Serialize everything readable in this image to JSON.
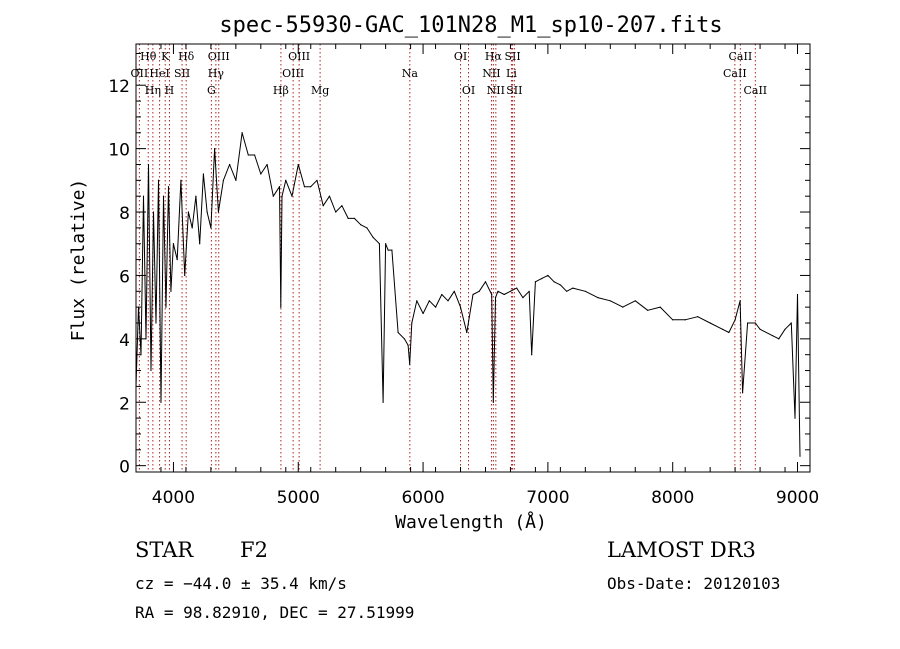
{
  "chart_data": {
    "type": "line",
    "title": "spec-55930-GAC_101N28_M1_sp10-207.fits",
    "xlabel": "Wavelength (Å)",
    "ylabel": "Flux (relative)",
    "xlim": [
      3700,
      9100
    ],
    "ylim": [
      -0.2,
      13.3
    ],
    "xticks": [
      4000,
      5000,
      6000,
      7000,
      8000,
      9000
    ],
    "yticks": [
      0,
      2,
      4,
      6,
      8,
      10,
      12
    ],
    "grid": false,
    "series": [
      {
        "name": "spectrum",
        "x": [
          3700,
          3720,
          3740,
          3760,
          3780,
          3800,
          3820,
          3840,
          3860,
          3880,
          3900,
          3920,
          3940,
          3960,
          3980,
          4000,
          4030,
          4060,
          4090,
          4120,
          4150,
          4180,
          4210,
          4240,
          4270,
          4300,
          4330,
          4360,
          4400,
          4450,
          4500,
          4550,
          4600,
          4650,
          4700,
          4750,
          4800,
          4850,
          4860,
          4870,
          4900,
          4950,
          5000,
          5050,
          5100,
          5150,
          5200,
          5250,
          5300,
          5350,
          5400,
          5450,
          5500,
          5550,
          5600,
          5650,
          5680,
          5700,
          5720,
          5750,
          5800,
          5850,
          5880,
          5893,
          5910,
          5950,
          6000,
          6050,
          6100,
          6150,
          6200,
          6250,
          6300,
          6350,
          6400,
          6450,
          6500,
          6550,
          6563,
          6580,
          6600,
          6650,
          6700,
          6750,
          6800,
          6850,
          6870,
          6900,
          6950,
          7000,
          7050,
          7100,
          7150,
          7200,
          7300,
          7400,
          7500,
          7600,
          7700,
          7800,
          7900,
          8000,
          8100,
          8200,
          8300,
          8400,
          8450,
          8500,
          8540,
          8560,
          8600,
          8662,
          8700,
          8800,
          8850,
          8900,
          8950,
          8980,
          9000,
          9020
        ],
        "y": [
          2.5,
          5.0,
          3.5,
          8.5,
          4.0,
          9.5,
          3.0,
          8.0,
          4.5,
          9.0,
          2.0,
          8.5,
          5.0,
          8.8,
          5.5,
          7.0,
          6.5,
          9.0,
          6.0,
          8.0,
          7.5,
          8.5,
          7.0,
          9.2,
          8.0,
          7.5,
          10.0,
          8.0,
          9.0,
          9.5,
          9.0,
          10.5,
          9.8,
          9.8,
          9.2,
          9.5,
          8.5,
          8.8,
          5.0,
          8.5,
          9.0,
          8.5,
          9.5,
          8.8,
          8.8,
          9.0,
          8.2,
          8.5,
          8.0,
          8.2,
          7.8,
          7.8,
          7.6,
          7.5,
          7.2,
          7.0,
          2.0,
          7.0,
          6.8,
          6.8,
          4.2,
          4.0,
          3.8,
          3.2,
          4.5,
          5.2,
          4.8,
          5.2,
          5.0,
          5.4,
          5.2,
          5.5,
          5.0,
          4.2,
          5.4,
          5.5,
          5.8,
          5.4,
          2.0,
          5.3,
          5.5,
          5.4,
          5.5,
          5.6,
          5.3,
          5.5,
          3.5,
          5.8,
          5.9,
          6.0,
          5.8,
          5.7,
          5.5,
          5.6,
          5.5,
          5.3,
          5.2,
          5.0,
          5.2,
          4.9,
          5.0,
          4.6,
          4.6,
          4.7,
          4.5,
          4.3,
          4.2,
          4.6,
          5.2,
          2.3,
          4.5,
          4.5,
          4.3,
          4.1,
          4.0,
          4.3,
          4.5,
          1.5,
          5.4,
          0.3
        ]
      }
    ],
    "lines": [
      {
        "name": "OII",
        "wavelength": 3727,
        "row": 2
      },
      {
        "name": "Hθ",
        "wavelength": 3798,
        "row": 1
      },
      {
        "name": "Hη",
        "wavelength": 3835,
        "row": 3
      },
      {
        "name": "HeI",
        "wavelength": 3889,
        "row": 2
      },
      {
        "name": "K",
        "wavelength": 3934,
        "row": 1
      },
      {
        "name": "H",
        "wavelength": 3968,
        "row": 3
      },
      {
        "name": "SII",
        "wavelength": 4069,
        "row": 2
      },
      {
        "name": "Hδ",
        "wavelength": 4102,
        "row": 1
      },
      {
        "name": "G",
        "wavelength": 4304,
        "row": 3
      },
      {
        "name": "Hγ",
        "wavelength": 4340,
        "row": 2
      },
      {
        "name": "OIII",
        "wavelength": 4363,
        "row": 1
      },
      {
        "name": "Hβ",
        "wavelength": 4861,
        "row": 3
      },
      {
        "name": "OIII",
        "wavelength": 4959,
        "row": 2
      },
      {
        "name": "OIII",
        "wavelength": 5007,
        "row": 1
      },
      {
        "name": "Mg",
        "wavelength": 5175,
        "row": 3
      },
      {
        "name": "Na",
        "wavelength": 5894,
        "row": 2
      },
      {
        "name": "OI",
        "wavelength": 6300,
        "row": 1
      },
      {
        "name": "OI",
        "wavelength": 6364,
        "row": 3
      },
      {
        "name": "NII",
        "wavelength": 6548,
        "row": 2
      },
      {
        "name": "Hα",
        "wavelength": 6563,
        "row": 1
      },
      {
        "name": "NII",
        "wavelength": 6583,
        "row": 3
      },
      {
        "name": "Li",
        "wavelength": 6708,
        "row": 2
      },
      {
        "name": "SII",
        "wavelength": 6717,
        "row": 1
      },
      {
        "name": "SII",
        "wavelength": 6731,
        "row": 3
      },
      {
        "name": "CaII",
        "wavelength": 8498,
        "row": 2
      },
      {
        "name": "CaII",
        "wavelength": 8542,
        "row": 1
      },
      {
        "name": "CaII",
        "wavelength": 8662,
        "row": 3
      }
    ]
  },
  "info": {
    "class_label": "STAR",
    "subclass": "F2",
    "survey": "LAMOST DR3",
    "cz": "cz = −44.0 ± 35.4 km/s",
    "obs_date": "Obs-Date: 20120103",
    "radec": "RA =  98.82910, DEC =  27.51999"
  },
  "colors": {
    "line_marker": "#b22222",
    "spectrum": "#000000"
  }
}
